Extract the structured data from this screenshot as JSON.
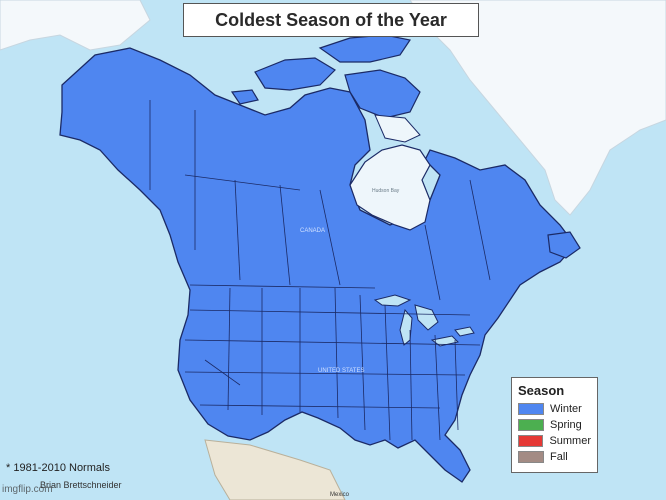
{
  "title": "Coldest Season of the Year",
  "legend": {
    "title": "Season",
    "items": [
      {
        "label": "Winter",
        "color": "#4f86f0"
      },
      {
        "label": "Spring",
        "color": "#4caf50"
      },
      {
        "label": "Summer",
        "color": "#e53935"
      },
      {
        "label": "Fall",
        "color": "#a38b84"
      }
    ]
  },
  "footnote": "* 1981-2010 Normals",
  "credit": "Brian Brettschneider",
  "watermark": "imgflip.com",
  "map_labels": {
    "canada": "CANADA",
    "usa": "UNITED STATES",
    "hudson": "Hudson Bay",
    "mexico": "Mexico"
  },
  "colors": {
    "ocean": "#bfe4f5",
    "land_winter": "#4f86f0",
    "ice": "#ffffff",
    "land_other": "#ece6d6"
  }
}
